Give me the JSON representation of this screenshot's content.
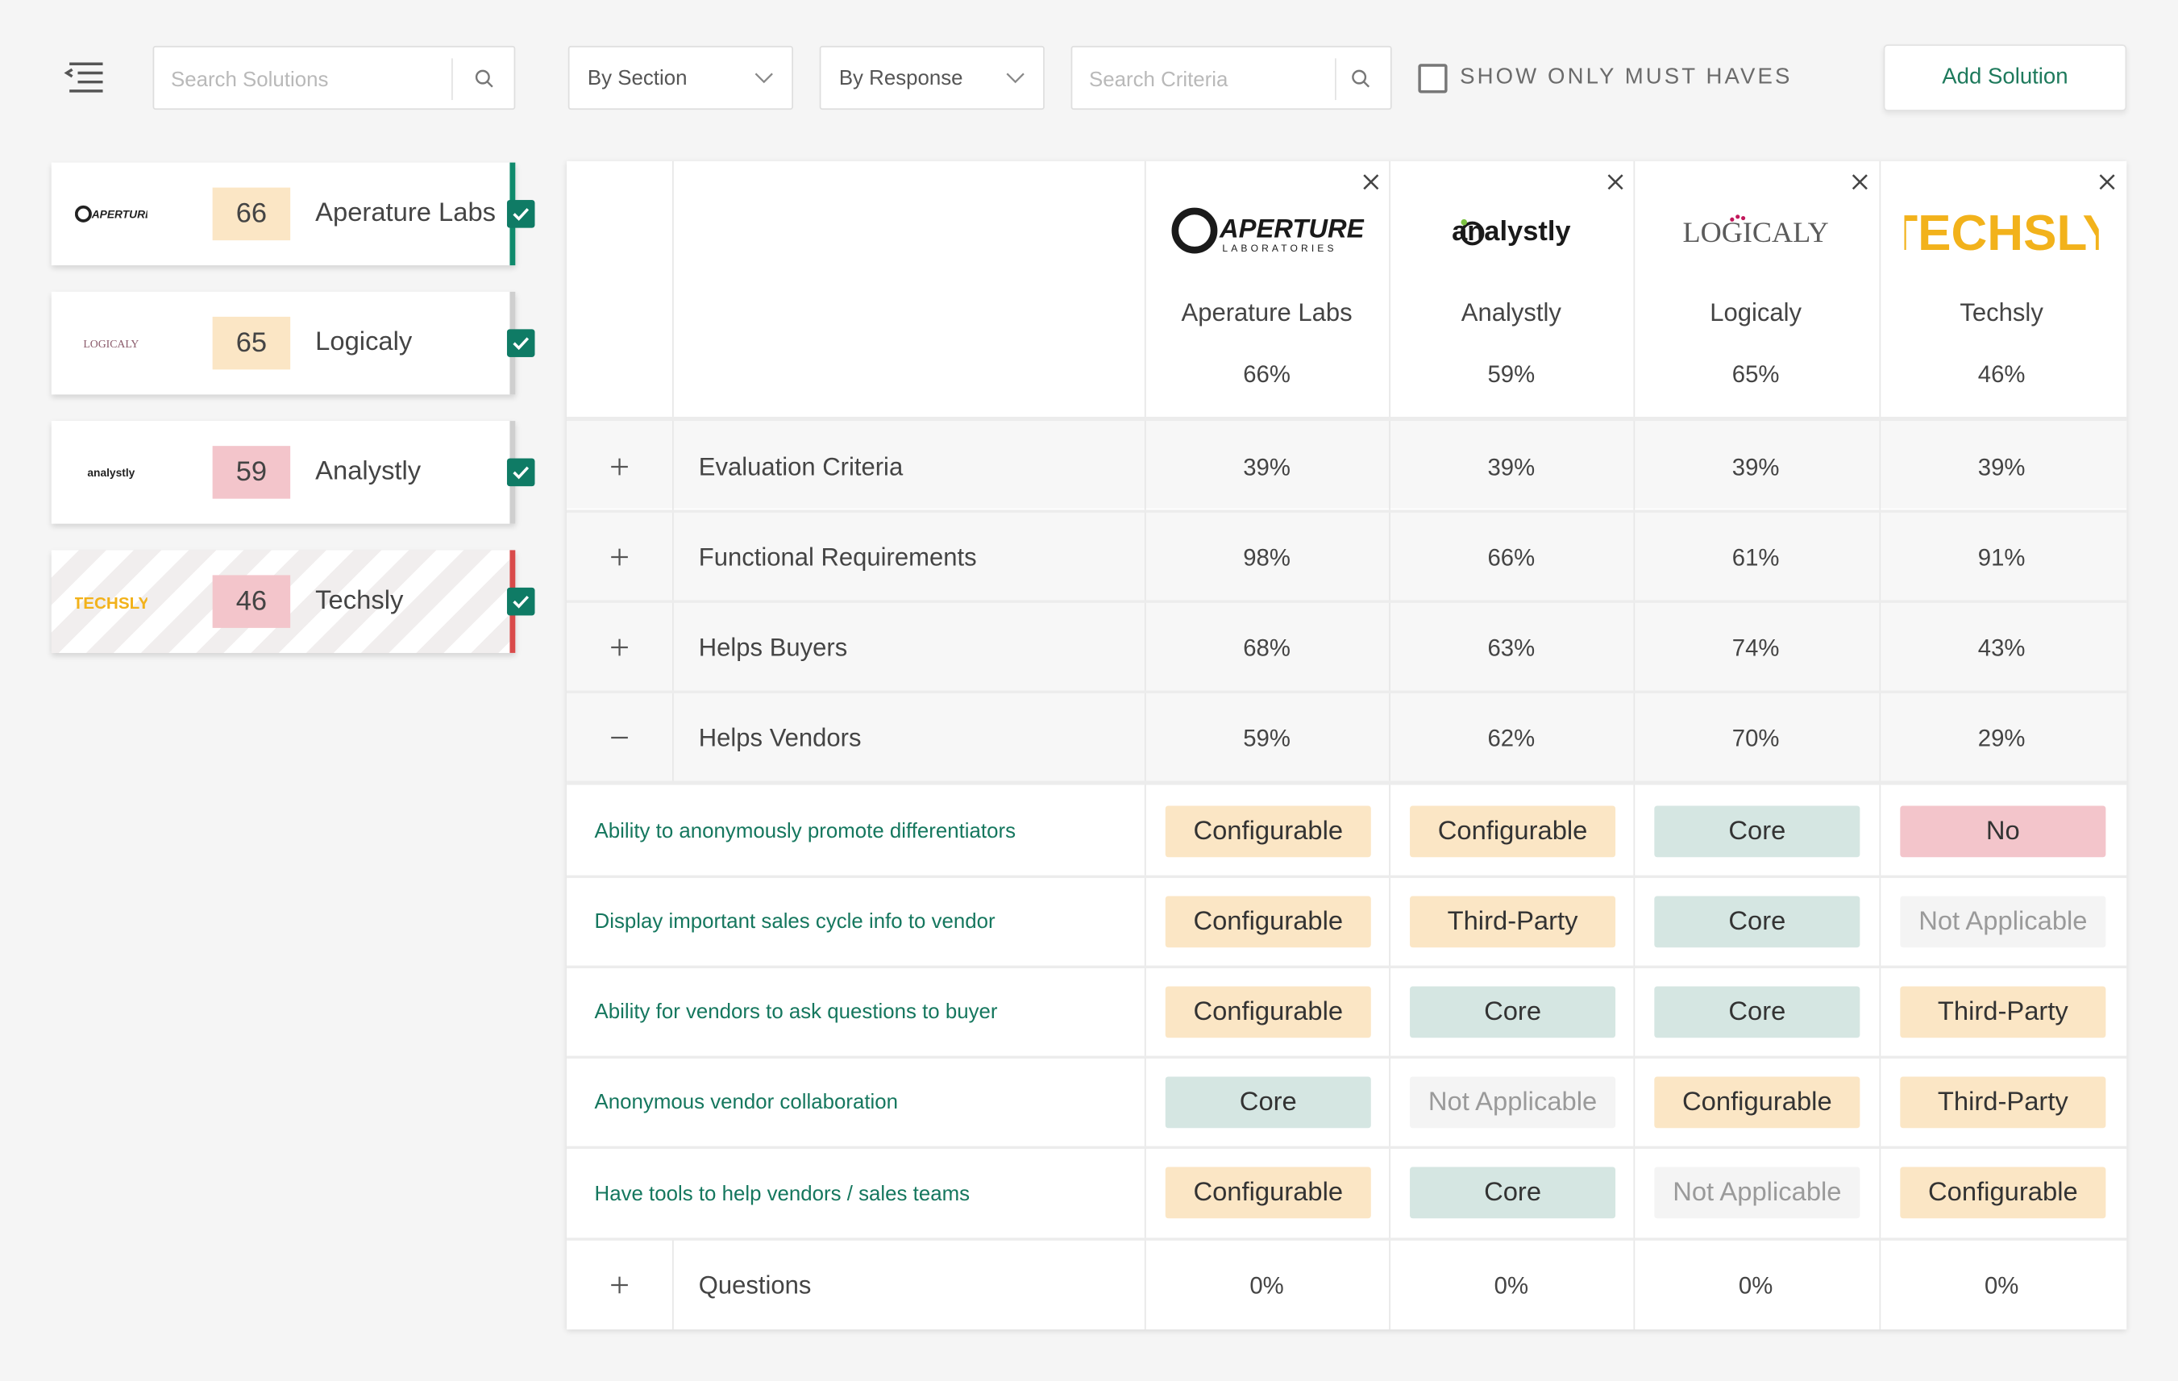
{
  "toolbar": {
    "search_solutions_placeholder": "Search Solutions",
    "by_section": "By Section",
    "by_response": "By Response",
    "search_criteria_placeholder": "Search Criteria",
    "show_only_must_haves": "SHOW ONLY MUST HAVES",
    "add_solution": "Add Solution"
  },
  "sidebar": {
    "cards": [
      {
        "logo": "APERTURE",
        "score": "66",
        "name": "Aperature Labs",
        "checked": true,
        "score_color": "#fbe6c5",
        "stripe_color": "#0f8a6c"
      },
      {
        "logo": "LOGICALY",
        "score": "65",
        "name": "Logicaly",
        "checked": true,
        "score_color": "#fbe6c5",
        "stripe_color": "#cfcfcf"
      },
      {
        "logo": "analystly",
        "score": "59",
        "name": "Analystly",
        "checked": true,
        "score_color": "#f3c5cb",
        "stripe_color": "#cfcfcf"
      },
      {
        "logo": "TECHSLY",
        "score": "46",
        "name": "Techsly",
        "checked": true,
        "score_color": "#f3c5cb",
        "stripe_color": "#d94a4a"
      }
    ]
  },
  "table": {
    "columns": [
      {
        "logo_main": "APERTURE",
        "logo_sub": "LABORATORIES",
        "name": "Aperature Labs",
        "score": "66%"
      },
      {
        "logo_main": "analystly",
        "name": "Analystly",
        "score": "59%"
      },
      {
        "logo_main": "LOGICALY",
        "name": "Logicaly",
        "score": "65%"
      },
      {
        "logo_main": "TECHSLY",
        "name": "Techsly",
        "score": "46%"
      }
    ],
    "sections": [
      {
        "label": "Evaluation Criteria",
        "values": [
          "39%",
          "39%",
          "39%",
          "39%"
        ],
        "expanded": false
      },
      {
        "label": "Functional Requirements",
        "values": [
          "98%",
          "66%",
          "61%",
          "91%"
        ],
        "expanded": false
      },
      {
        "label": "Helps Buyers",
        "values": [
          "68%",
          "63%",
          "74%",
          "43%"
        ],
        "expanded": false
      },
      {
        "label": "Helps Vendors",
        "values": [
          "59%",
          "62%",
          "70%",
          "29%"
        ],
        "expanded": true
      }
    ],
    "criteria": [
      {
        "label": "Ability to anonymously promote differentiators",
        "responses": [
          "Configurable",
          "Configurable",
          "Core",
          "No"
        ]
      },
      {
        "label": "Display important sales cycle info to vendor",
        "responses": [
          "Configurable",
          "Third-Party",
          "Core",
          "Not Applicable"
        ]
      },
      {
        "label": "Ability for vendors to ask questions to buyer",
        "responses": [
          "Configurable",
          "Core",
          "Core",
          "Third-Party"
        ]
      },
      {
        "label": "Anonymous vendor collaboration",
        "responses": [
          "Core",
          "Not Applicable",
          "Configurable",
          "Third-Party"
        ]
      },
      {
        "label": "Have tools to help vendors / sales teams",
        "responses": [
          "Configurable",
          "Core",
          "Not Applicable",
          "Configurable"
        ]
      }
    ],
    "questions": {
      "label": "Questions",
      "values": [
        "0%",
        "0%",
        "0%",
        "0%"
      ],
      "expanded": false
    }
  },
  "colors": {
    "accent_green": "#0f7b65",
    "configurable": "#fbe6c5",
    "third_party": "#fbe6c5",
    "core": "#d5e6e2",
    "no": "#f3c5cb",
    "not_applicable": "#f4f4f4"
  },
  "icons": [
    "menu-collapse-icon",
    "search-icon",
    "chevron-down-icon",
    "close-icon",
    "plus-icon",
    "minus-icon",
    "check-icon"
  ]
}
